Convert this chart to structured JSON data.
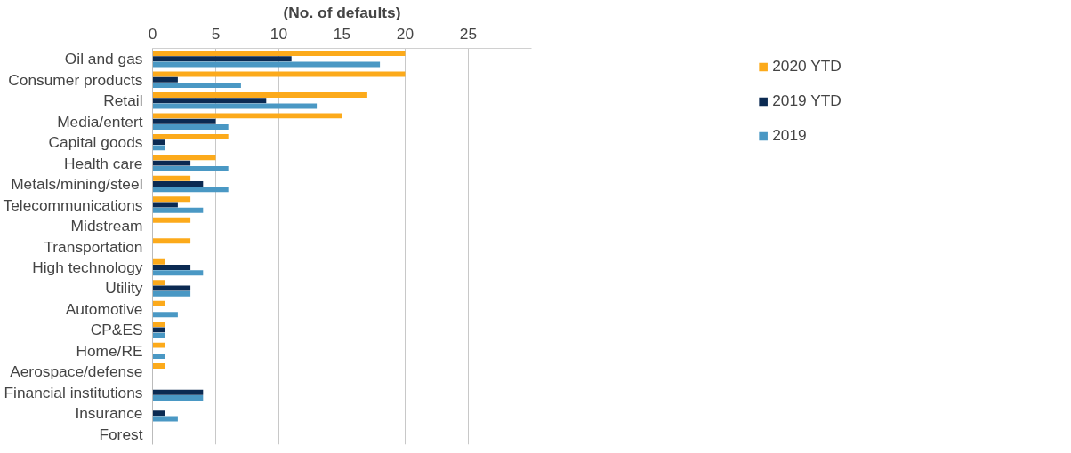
{
  "chart_data": {
    "type": "bar",
    "orientation": "horizontal",
    "xlabel": "(No. of defaults)",
    "categories": [
      "Oil and gas",
      "Consumer products",
      "Retail",
      "Media/entert",
      "Capital goods",
      "Health care",
      "Metals/mining/steel",
      "Telecommunications",
      "Midstream",
      "Transportation",
      "High technology",
      "Utility",
      "Automotive",
      "CP&ES",
      "Home/RE",
      "Aerospace/defense",
      "Financial institutions",
      "Insurance",
      "Forest"
    ],
    "series": [
      {
        "name": "2020 YTD",
        "color": "#fcaa1b",
        "values": [
          20,
          20,
          17,
          15,
          6,
          5,
          3,
          3,
          3,
          3,
          1,
          1,
          1,
          1,
          1,
          1,
          0,
          0,
          0
        ]
      },
      {
        "name": "2019 YTD",
        "color": "#0b2a52",
        "values": [
          11,
          2,
          9,
          5,
          1,
          3,
          4,
          2,
          0,
          0,
          3,
          3,
          0,
          1,
          0,
          0,
          4,
          1,
          0
        ]
      },
      {
        "name": "2019",
        "color": "#4a98c4",
        "values": [
          18,
          7,
          13,
          6,
          1,
          6,
          6,
          4,
          0,
          0,
          4,
          3,
          2,
          1,
          1,
          0,
          4,
          2,
          0
        ]
      }
    ],
    "xlim": [
      0,
      30
    ],
    "xticks": [
      0,
      5,
      10,
      15,
      20,
      25
    ],
    "grid": "x",
    "legend": "top right"
  }
}
